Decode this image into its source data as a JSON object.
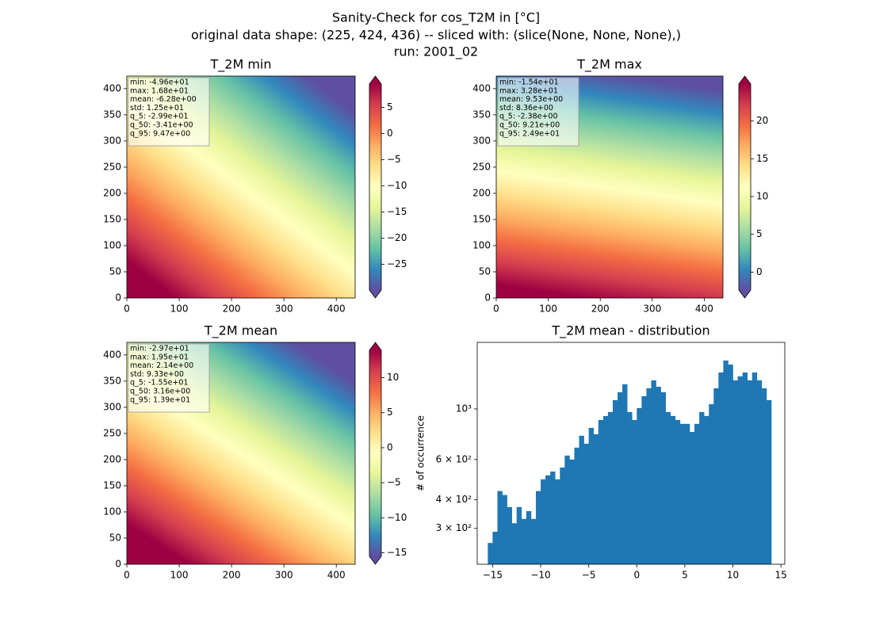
{
  "figure": {
    "title": [
      "Sanity-Check for cos_T2M in [°C]",
      "original data shape: (225, 424, 436) -- sliced with: (slice(None, None, None),)",
      "run: 2001_02"
    ]
  },
  "chart_data": [
    {
      "type": "heatmap",
      "title": "T_2M min",
      "stats": [
        "min: -4.96e+01",
        "max: 1.68e+01",
        "mean: -6.28e+00",
        "std: 1.25e+01",
        "q_5: -2.99e+01",
        "q_50: -3.41e+00",
        "q_95: 9.47e+00"
      ],
      "xlim": [
        0,
        436
      ],
      "ylim": [
        0,
        424
      ],
      "xticks": [
        0,
        100,
        200,
        300,
        400
      ],
      "yticks": [
        0,
        50,
        100,
        150,
        200,
        250,
        300,
        350,
        400
      ],
      "colorbar": {
        "lim": [
          -29.9,
          9.47
        ],
        "ticks": [
          {
            "value": -25,
            "label": "−25"
          },
          {
            "value": -20,
            "label": "−20"
          },
          {
            "value": -15,
            "label": "−15"
          },
          {
            "value": -10,
            "label": "−10"
          },
          {
            "value": -5,
            "label": "−5"
          },
          0,
          5
        ]
      },
      "colormap": [
        "#5e4fa2",
        "#3288bd",
        "#66c2a5",
        "#abdda4",
        "#e6f598",
        "#ffffbf",
        "#fee08b",
        "#fdae61",
        "#f46d43",
        "#d53e4f",
        "#9e0142"
      ]
    },
    {
      "type": "heatmap",
      "title": "T_2M max",
      "stats": [
        "min: -1.54e+01",
        "max: 3.28e+01",
        "mean: 9.53e+00",
        "std: 8.36e+00",
        "q_5: -2.38e+00",
        "q_50: 9.21e+00",
        "q_95: 2.49e+01"
      ],
      "xlim": [
        0,
        436
      ],
      "ylim": [
        0,
        424
      ],
      "xticks": [
        0,
        100,
        200,
        300,
        400
      ],
      "yticks": [
        0,
        50,
        100,
        150,
        200,
        250,
        300,
        350,
        400
      ],
      "colorbar": {
        "lim": [
          -2.38,
          24.9
        ],
        "ticks": [
          0,
          5,
          10,
          15,
          20
        ]
      },
      "colormap": [
        "#5e4fa2",
        "#3288bd",
        "#66c2a5",
        "#abdda4",
        "#e6f598",
        "#ffffbf",
        "#fee08b",
        "#fdae61",
        "#f46d43",
        "#d53e4f",
        "#9e0142"
      ]
    },
    {
      "type": "heatmap",
      "title": "T_2M mean",
      "stats": [
        "min: -2.97e+01",
        "max: 1.95e+01",
        "mean: 2.14e+00",
        "std: 9.33e+00",
        "q_5: -1.55e+01",
        "q_50: 3.16e+00",
        "q_95: 1.39e+01"
      ],
      "xlim": [
        0,
        436
      ],
      "ylim": [
        0,
        424
      ],
      "xticks": [
        0,
        100,
        200,
        300,
        400
      ],
      "yticks": [
        0,
        50,
        100,
        150,
        200,
        250,
        300,
        350,
        400
      ],
      "colorbar": {
        "lim": [
          -15.5,
          13.9
        ],
        "ticks": [
          {
            "value": -15,
            "label": "−15"
          },
          {
            "value": -10,
            "label": "−10"
          },
          {
            "value": -5,
            "label": "−5"
          },
          0,
          5,
          10
        ]
      },
      "colormap": [
        "#5e4fa2",
        "#3288bd",
        "#66c2a5",
        "#abdda4",
        "#e6f598",
        "#ffffbf",
        "#fee08b",
        "#fdae61",
        "#f46d43",
        "#d53e4f",
        "#9e0142"
      ]
    },
    {
      "type": "histogram",
      "title": "T_2M mean - distribution",
      "ylabel": "# of occurrence",
      "color": "#1f77b4",
      "ylog": true,
      "bins": [
        -15.5,
        -15,
        -14.5,
        -14,
        -13.5,
        -13,
        -12.5,
        -12,
        -11.5,
        -11,
        -10.5,
        -10,
        -9.5,
        -9,
        -8.5,
        -8,
        -7.5,
        -7,
        -6.5,
        -6,
        -5.5,
        -5,
        -4.5,
        -4,
        -3.5,
        -3,
        -2.5,
        -2,
        -1.5,
        -1,
        -0.5,
        0,
        0.5,
        1,
        1.5,
        2,
        2.5,
        3,
        3.5,
        4,
        4.5,
        5,
        5.5,
        6,
        6.5,
        7,
        7.5,
        8,
        8.5,
        9,
        9.5,
        10,
        10.5,
        11,
        11.5,
        12,
        12.5,
        13,
        13.5,
        14
      ],
      "counts": [
        259,
        290,
        437,
        420,
        372,
        316,
        372,
        330,
        357,
        330,
        437,
        492,
        512,
        532,
        492,
        554,
        625,
        600,
        677,
        763,
        704,
        826,
        775,
        894,
        931,
        969,
        1092,
        1183,
        1281,
        969,
        894,
        1008,
        1136,
        1231,
        1333,
        1250,
        1183,
        969,
        931,
        894,
        860,
        860,
        793,
        860,
        969,
        931,
        1049,
        1231,
        1443,
        1628,
        1563,
        1333,
        1388,
        1443,
        1333,
        1443,
        1333,
        1231,
        1092
      ],
      "xlim": [
        -16.6,
        15.4
      ],
      "ylim": [
        209,
        1955
      ],
      "xticks": [
        {
          "value": -15,
          "label": "−15"
        },
        {
          "value": -10,
          "label": "−10"
        },
        {
          "value": -5,
          "label": "−5"
        },
        0,
        5,
        10,
        15
      ],
      "yticks": [
        {
          "value": 300,
          "label": "3 × 10²"
        },
        {
          "value": 400,
          "label": "4 × 10²"
        },
        {
          "value": 600,
          "label": "6 × 10²"
        },
        {
          "value": 1000,
          "label": "10³"
        }
      ]
    }
  ]
}
